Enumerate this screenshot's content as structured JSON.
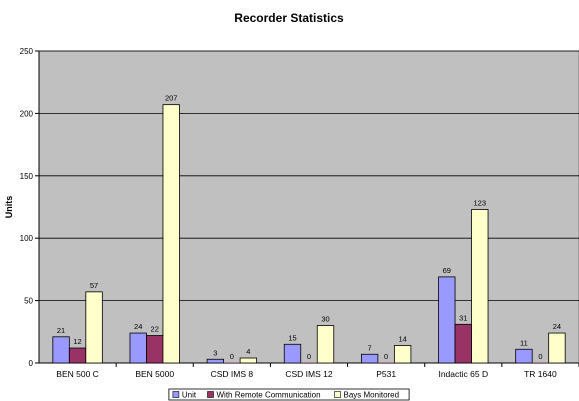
{
  "chart_data": {
    "type": "bar",
    "title": "Recorder Statistics",
    "xlabel": "",
    "ylabel": "Units",
    "ylim": [
      0,
      250
    ],
    "yticks": [
      0,
      50,
      100,
      150,
      200,
      250
    ],
    "grid": true,
    "legend_position": "bottom",
    "categories": [
      "BEN 500 C",
      "BEN 5000",
      "CSD IMS 8",
      "CSD IMS 12",
      "P531",
      "Indactic 65 D",
      "TR 1640"
    ],
    "series": [
      {
        "name": "Unit",
        "color": "#9999FF",
        "values": [
          21,
          24,
          3,
          15,
          7,
          69,
          11
        ]
      },
      {
        "name": "With Remote Communication",
        "color": "#993366",
        "values": [
          12,
          22,
          0,
          0,
          0,
          31,
          0
        ]
      },
      {
        "name": "Bays Monitored",
        "color": "#FFFFCC",
        "values": [
          57,
          207,
          4,
          30,
          14,
          123,
          24
        ]
      }
    ],
    "plot_background": "#C0C0C0",
    "data_labels": true
  }
}
